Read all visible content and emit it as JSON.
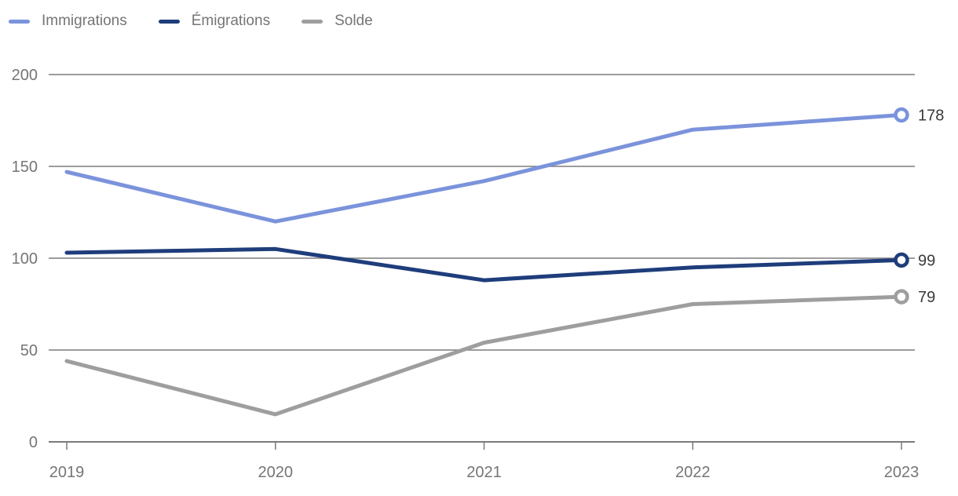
{
  "chart_data": {
    "type": "line",
    "title": "",
    "xlabel": "",
    "ylabel": "",
    "x_labels": [
      "2019",
      "2020",
      "2021",
      "2022",
      "2023"
    ],
    "yticks": [
      0,
      50,
      100,
      150,
      200
    ],
    "ylim": [
      0,
      200
    ],
    "grid": "horizontal",
    "legend_position": "top-left",
    "marker_style": "open-circle-on-last-point",
    "series": [
      {
        "key": "immigrations",
        "name": "Immigrations",
        "color": "#7b93db",
        "values": [
          147,
          120,
          142,
          170,
          178
        ],
        "end_label": "178"
      },
      {
        "key": "emigrations",
        "name": "Émigrations",
        "color": "#1e3d7b",
        "values": [
          103,
          105,
          88,
          95,
          99
        ],
        "end_label": "99"
      },
      {
        "key": "solde",
        "name": "Solde",
        "color": "#9e9e9e",
        "values": [
          44,
          15,
          54,
          75,
          79
        ],
        "end_label": "79"
      }
    ],
    "colors": {
      "grid": "#7b7b7b",
      "axis_text": "#757575",
      "value_label": "#3a3a3a",
      "background": "#ffffff",
      "marker_fill": "#ffffff"
    }
  }
}
